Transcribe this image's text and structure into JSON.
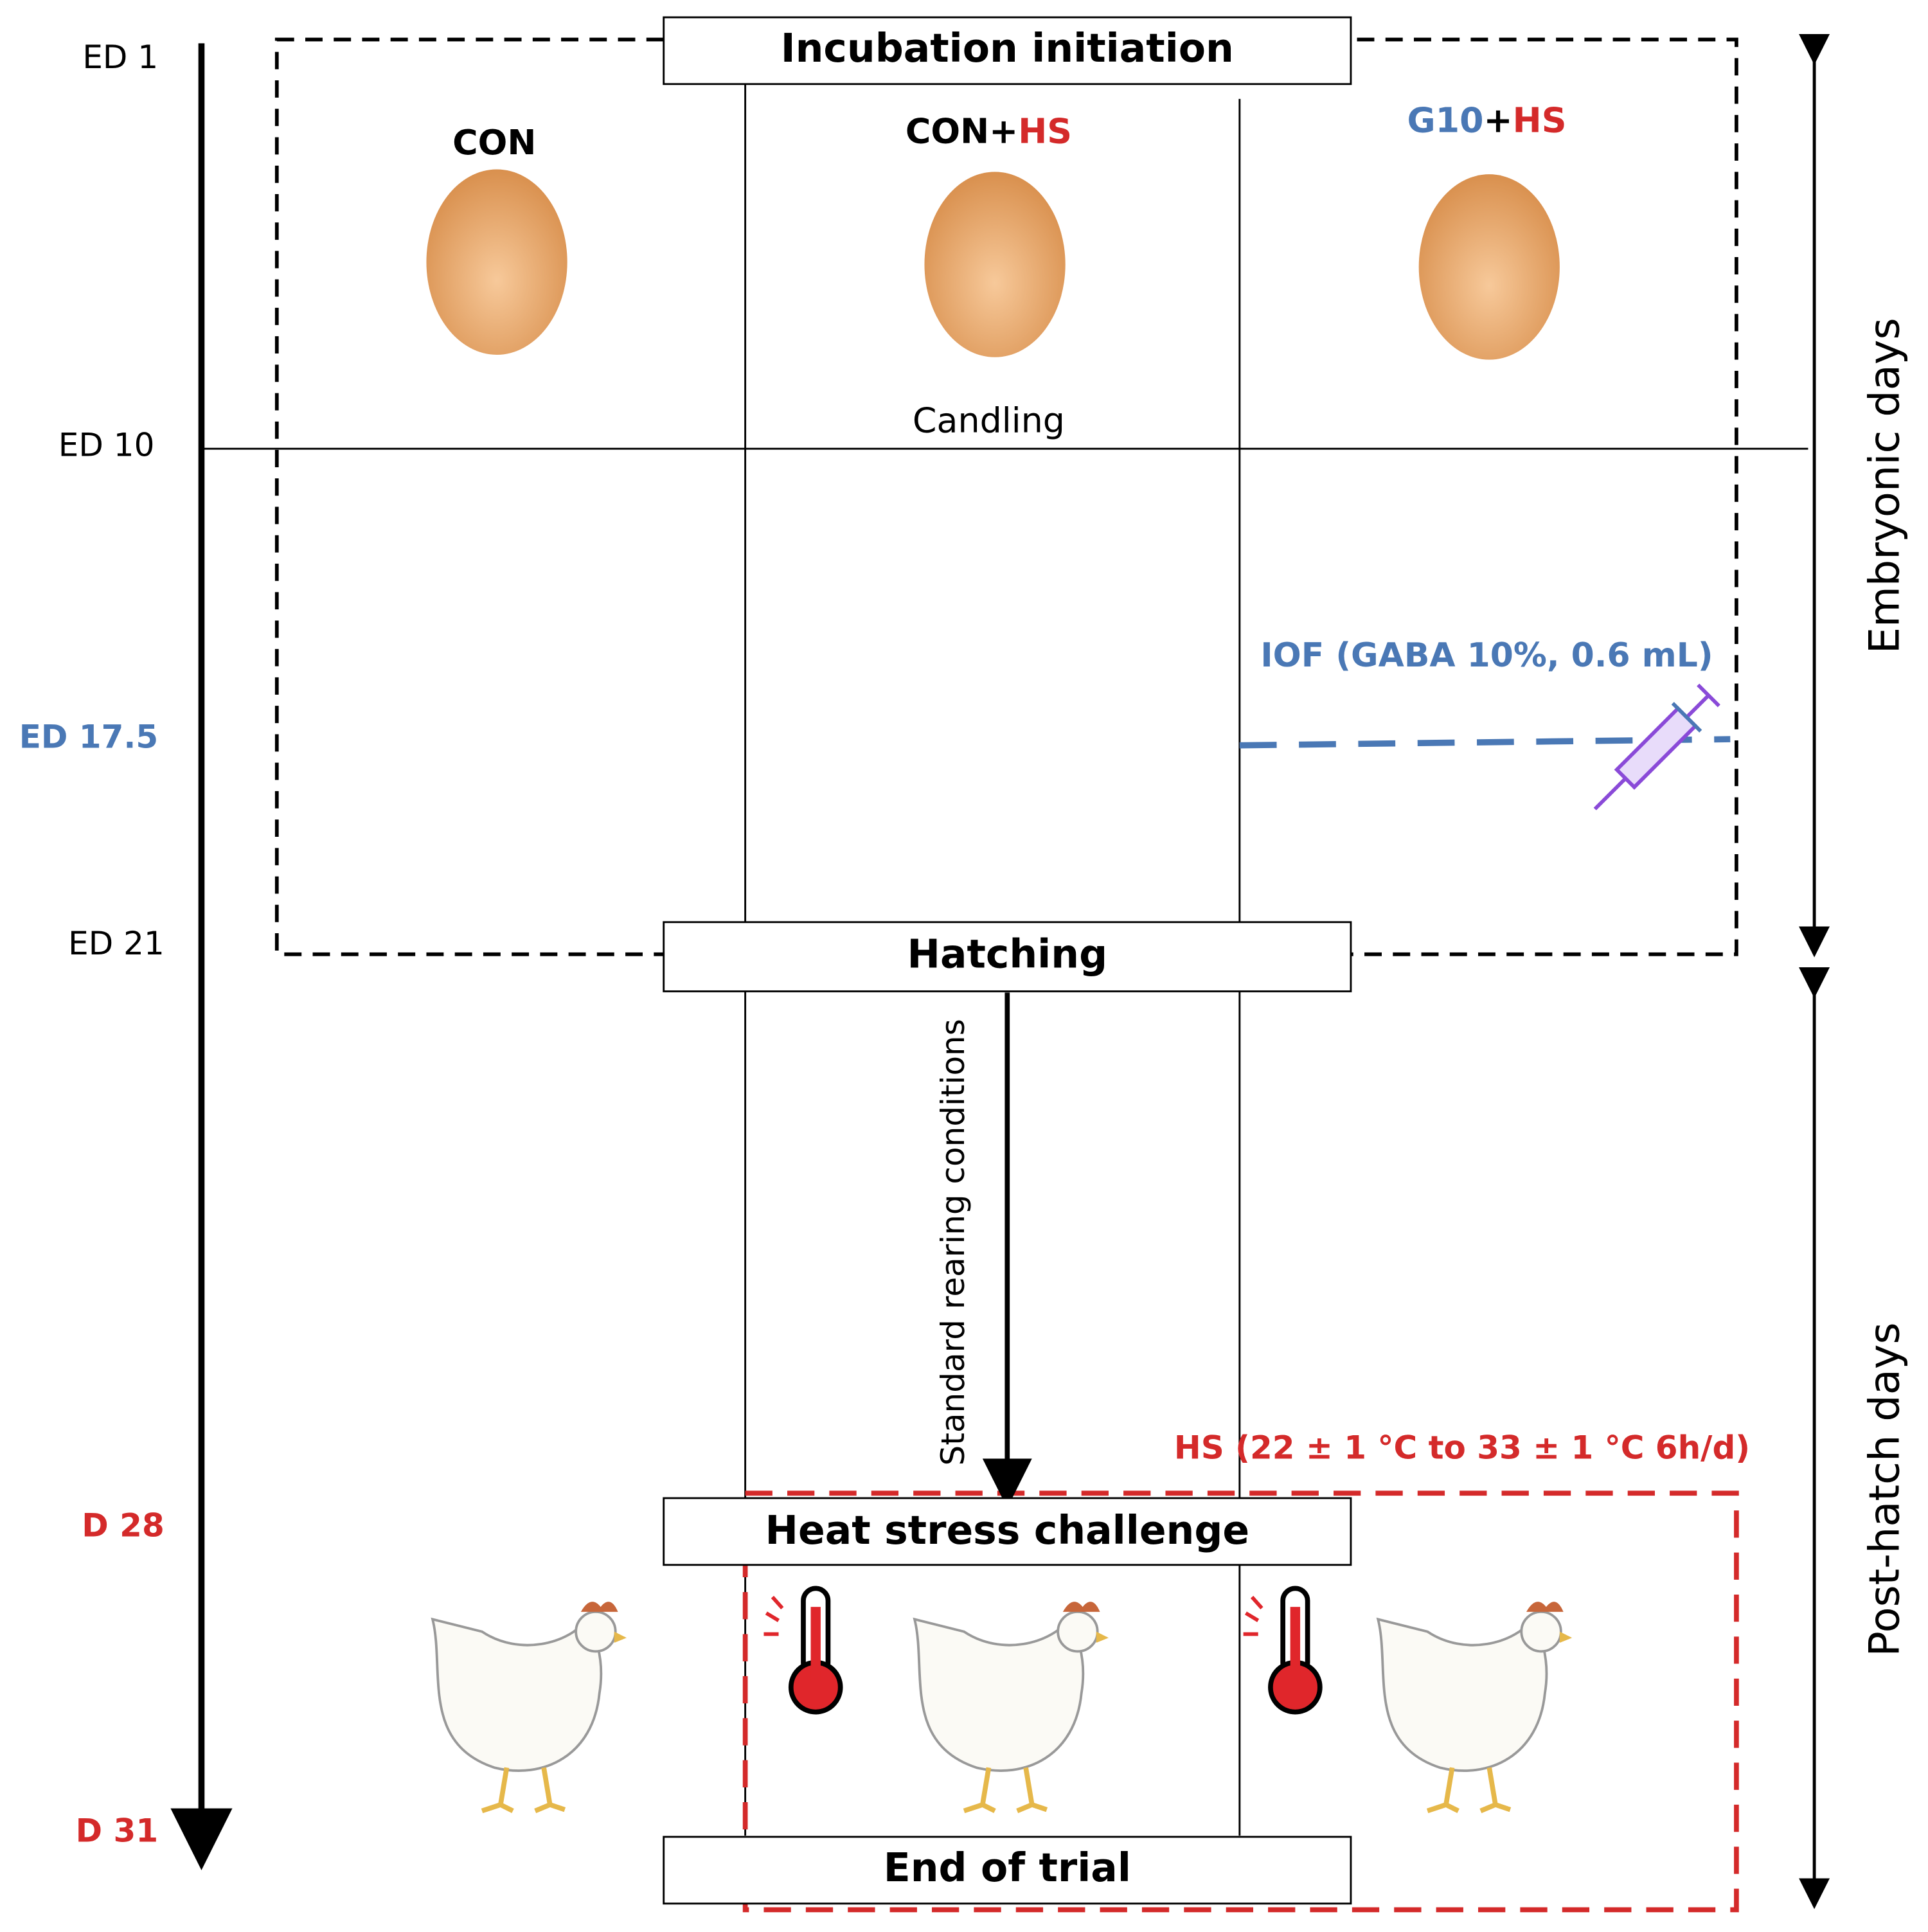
{
  "timeline": [
    "ED 1",
    "ED 10",
    "ED 17.5",
    "ED 21",
    "D 28",
    "D 31"
  ],
  "groups": [
    {
      "parts": [
        "CON"
      ]
    },
    {
      "parts": [
        "CON+",
        "HS"
      ]
    },
    {
      "parts": [
        "G10",
        "+",
        "HS"
      ]
    }
  ],
  "boxes": [
    "Incubation initiation",
    "Hatching",
    "Heat stress challenge",
    "End of trial"
  ],
  "annotations": {
    "candling": "Candling",
    "iof": "IOF (GABA 10%, 0.6 mL)",
    "rearing": "Standard rearing conditions",
    "hs": "HS  (22 ± 1 °C to 33 ± 1 °C 6h/d)"
  },
  "phases": [
    "Embryonic days",
    "Post-hatch days"
  ]
}
